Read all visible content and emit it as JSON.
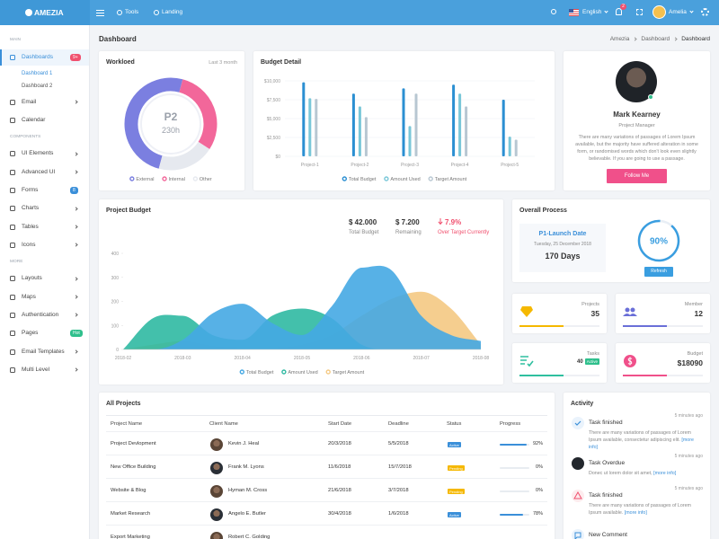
{
  "header": {
    "brand": "AMEZIA",
    "nav": [
      "Tools",
      "Landing"
    ],
    "language": "English",
    "notifications": 2,
    "user": "Amelia"
  },
  "sidebar": {
    "sections": [
      {
        "title": "MAIN",
        "items": [
          {
            "label": "Dashboards",
            "badge": "9+",
            "badge_color": "#f0506e",
            "active": true,
            "children": [
              {
                "label": "Dashboard 1",
                "active": true
              },
              {
                "label": "Dashboard 2"
              }
            ]
          },
          {
            "label": "Email",
            "arrow": true
          },
          {
            "label": "Calendar"
          }
        ]
      },
      {
        "title": "COMPONENTS",
        "items": [
          {
            "label": "UI Elements",
            "arrow": true
          },
          {
            "label": "Advanced UI",
            "arrow": true
          },
          {
            "label": "Forms",
            "badge": "8",
            "badge_color": "#3a8fd9"
          },
          {
            "label": "Charts",
            "arrow": true
          },
          {
            "label": "Tables",
            "arrow": true
          },
          {
            "label": "Icons",
            "arrow": true
          }
        ]
      },
      {
        "title": "MORE",
        "items": [
          {
            "label": "Layouts",
            "arrow": true
          },
          {
            "label": "Maps",
            "arrow": true
          },
          {
            "label": "Authentication",
            "arrow": true
          },
          {
            "label": "Pages",
            "badge": "Hot",
            "badge_color": "#2fbf8c"
          },
          {
            "label": "Email Templates",
            "arrow": true
          },
          {
            "label": "Multi Level",
            "arrow": true
          }
        ]
      }
    ]
  },
  "page": {
    "title": "Dashboard",
    "breadcrumb": [
      "Amezia",
      "Dashboard",
      "Dashboard"
    ]
  },
  "workload": {
    "title": "Workloed",
    "subtitle": "Last 3 month",
    "center_title": "P2",
    "center_value": "230h",
    "chart": {
      "type": "donut",
      "categories": [
        "External",
        "Internal",
        "Other"
      ],
      "values": [
        50,
        30,
        20
      ],
      "colors": [
        "#7b7fe0",
        "#f2679a",
        "#e6e9ef"
      ]
    }
  },
  "budget_detail": {
    "title": "Budget Detail",
    "chart": {
      "type": "bar",
      "categories": [
        "Project-1",
        "Project-2",
        "Project-3",
        "Project-4",
        "Project-5"
      ],
      "series": [
        {
          "name": "Total Budget",
          "color": "#2b8fd2",
          "values": [
            9800,
            8300,
            9000,
            9500,
            7500
          ]
        },
        {
          "name": "Amount Used",
          "color": "#79c7d8",
          "values": [
            7700,
            6600,
            4000,
            8300,
            2600
          ]
        },
        {
          "name": "Target Amount",
          "color": "#b8c7d2",
          "values": [
            7600,
            5200,
            8300,
            6600,
            2200
          ]
        }
      ],
      "ylim": [
        0,
        10000
      ],
      "yticks": [
        {
          "value": 0,
          "label": "$0"
        },
        {
          "value": 2500,
          "label": "$2,500"
        },
        {
          "value": 5000,
          "label": "$5,000"
        },
        {
          "value": 7500,
          "label": "$7,500"
        },
        {
          "value": 10000,
          "label": "$10,000"
        }
      ],
      "grid": true
    }
  },
  "profile": {
    "name": "Mark Kearney",
    "role": "Project Manager",
    "bio": "There are many variations of passages of Lorem Ipsum available, but the majority have suffered alteration in some form, or randomised words which don't look even slightly believable. If you are going to use a passage.",
    "button": "Follow Me"
  },
  "project_budget": {
    "title": "Project Budget",
    "stats": [
      {
        "value": "$ 42.000",
        "label": "Total Budget"
      },
      {
        "value": "$ 7.200",
        "label": "Remaining"
      },
      {
        "value": "7.9%",
        "label": "Over Target Currently",
        "color": "#f0506e"
      }
    ],
    "chart": {
      "type": "area",
      "categories": [
        "2018-02",
        null,
        "2018-03",
        null,
        "2018-04",
        null,
        "2018-05",
        null,
        "2018-06",
        null,
        "2018-07",
        null,
        "2018-08"
      ],
      "series": [
        {
          "name": "Total Budget",
          "color": "#45a8e3",
          "values": [
            0,
            0,
            40,
            150,
            190,
            110,
            60,
            180,
            340,
            330,
            140,
            60,
            35
          ]
        },
        {
          "name": "Amount Used",
          "color": "#2fb9a2",
          "values": [
            0,
            130,
            140,
            60,
            40,
            140,
            170,
            130,
            20,
            0,
            0,
            0,
            0
          ]
        },
        {
          "name": "Target Amount",
          "color": "#f4c983",
          "values": [
            0,
            20,
            35,
            15,
            5,
            5,
            20,
            60,
            140,
            210,
            240,
            170,
            20
          ]
        }
      ],
      "ylim": [
        0,
        400
      ],
      "yticks": [
        0,
        100,
        200,
        300,
        400
      ]
    }
  },
  "overall_process": {
    "title": "Overall Process",
    "event": "P1-Launch Date",
    "date": "Tuesday, 25 December 2018",
    "days": "170 Days",
    "gauge": {
      "value": 90,
      "label": "90%",
      "lim": [
        0,
        100
      ],
      "color": "#3a9ee0"
    },
    "button": "Refresh"
  },
  "stats": [
    {
      "label": "Projects",
      "value": 35,
      "color": "#f5b800"
    },
    {
      "label": "Member",
      "value": 12,
      "color": "#6a6fd8"
    },
    {
      "label": "Tasks",
      "value": 40,
      "badge": "Active",
      "color": "#2fbf9f"
    },
    {
      "label": "Budget",
      "value": 18090,
      "value_label": "$18090",
      "color": "#f0508a"
    }
  ],
  "projects": {
    "title": "All Projects",
    "columns": [
      "Project Name",
      "Client Name",
      "Start Date",
      "Deadline",
      "Status",
      "Progress"
    ],
    "progress_lim": [
      0,
      100
    ],
    "rows": [
      {
        "project": "Project Devlopment",
        "client": "Kevin J. Heal",
        "start": "20/3/2018",
        "deadline": "5/5/2018",
        "status": "Active",
        "status_color": "#3a8fd9",
        "progress": 92,
        "progress_label": "92%"
      },
      {
        "project": "New Office Building",
        "client": "Frank M. Lyons",
        "start": "11/6/2018",
        "deadline": "15/7/2018",
        "status": "Pending",
        "status_color": "#f5b800",
        "progress": 0,
        "progress_label": "0%"
      },
      {
        "project": "Website & Blog",
        "client": "Hyman M. Cross",
        "start": "21/6/2018",
        "deadline": "3/7/2018",
        "status": "Pending",
        "status_color": "#f5b800",
        "progress": 0,
        "progress_label": "0%"
      },
      {
        "project": "Market Research",
        "client": "Angelo E. Butler",
        "start": "30/4/2018",
        "deadline": "1/6/2018",
        "status": "Active",
        "status_color": "#3a8fd9",
        "progress": 78,
        "progress_label": "78%"
      },
      {
        "project": "Export Marketing",
        "client": "Robert C. Golding"
      }
    ]
  },
  "activity": {
    "title": "Activity",
    "items": [
      {
        "icon": "check",
        "title": "Task finished",
        "time": "5 minutes ago",
        "text": "There are many variations of passages of Lorem Ipsum available, consectetur adipiscing elit.",
        "link": "[more info]"
      },
      {
        "icon": "avatar",
        "title": "Task Overdue",
        "time": "5 minutes ago",
        "text": "Donec ut lorem dolor sit amet,",
        "link": "[more info]"
      },
      {
        "icon": "warning",
        "title": "Task finished",
        "time": "5 minutes ago",
        "text": "There are many variations of passages of Lorem Ipsum available.",
        "link": "[more info]"
      },
      {
        "icon": "comment",
        "title": "New Comment"
      }
    ]
  }
}
